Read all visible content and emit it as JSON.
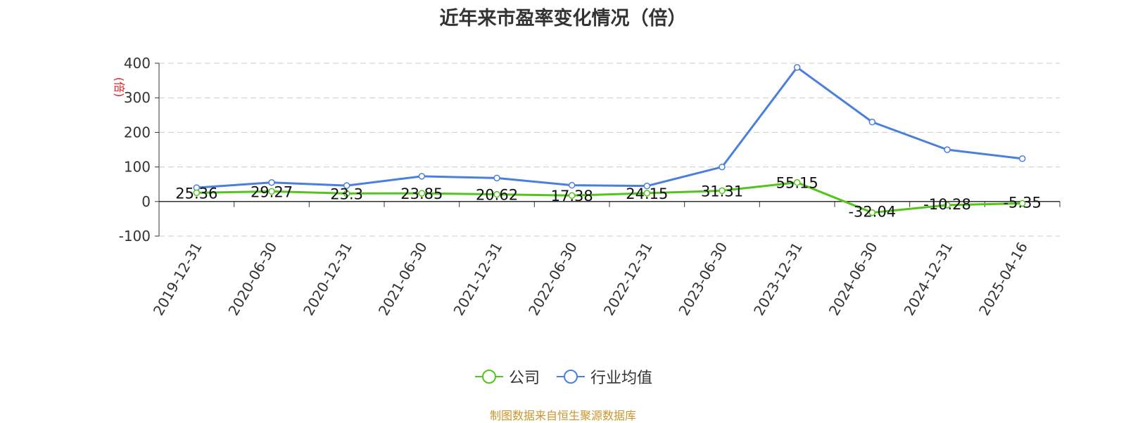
{
  "chart_data": {
    "type": "line",
    "title": "近年来市盈率变化情况（倍）",
    "ylabel": "(倍)",
    "xlabel": "",
    "categories": [
      "2019-12-31",
      "2020-06-30",
      "2020-12-31",
      "2021-06-30",
      "2021-12-31",
      "2022-06-30",
      "2022-12-31",
      "2023-06-30",
      "2023-12-31",
      "2024-06-30",
      "2024-12-31",
      "2025-04-16"
    ],
    "ylim": [
      -100,
      400
    ],
    "yticks": [
      "-100",
      "0",
      "100",
      "200",
      "300",
      "400"
    ],
    "grid": true,
    "legend_position": "bottom",
    "series": [
      {
        "name": "公司",
        "color": "#52c41a",
        "values": [
          25.36,
          29.27,
          23.3,
          23.85,
          20.62,
          17.38,
          24.15,
          31.31,
          55.15,
          -32.04,
          -10.28,
          -5.35
        ],
        "labels": [
          "25.36",
          "29.27",
          "23.3",
          "23.85",
          "20.62",
          "17.38",
          "24.15",
          "31.31",
          "55.15",
          "-32.04",
          "-10.28",
          "-5.35"
        ]
      },
      {
        "name": "行业均值",
        "color": "#4a7fdc",
        "values": [
          40,
          55,
          46,
          73,
          68,
          47,
          45,
          100,
          388,
          230,
          150,
          124
        ]
      }
    ]
  },
  "source": "制图数据来自恒生聚源数据库"
}
